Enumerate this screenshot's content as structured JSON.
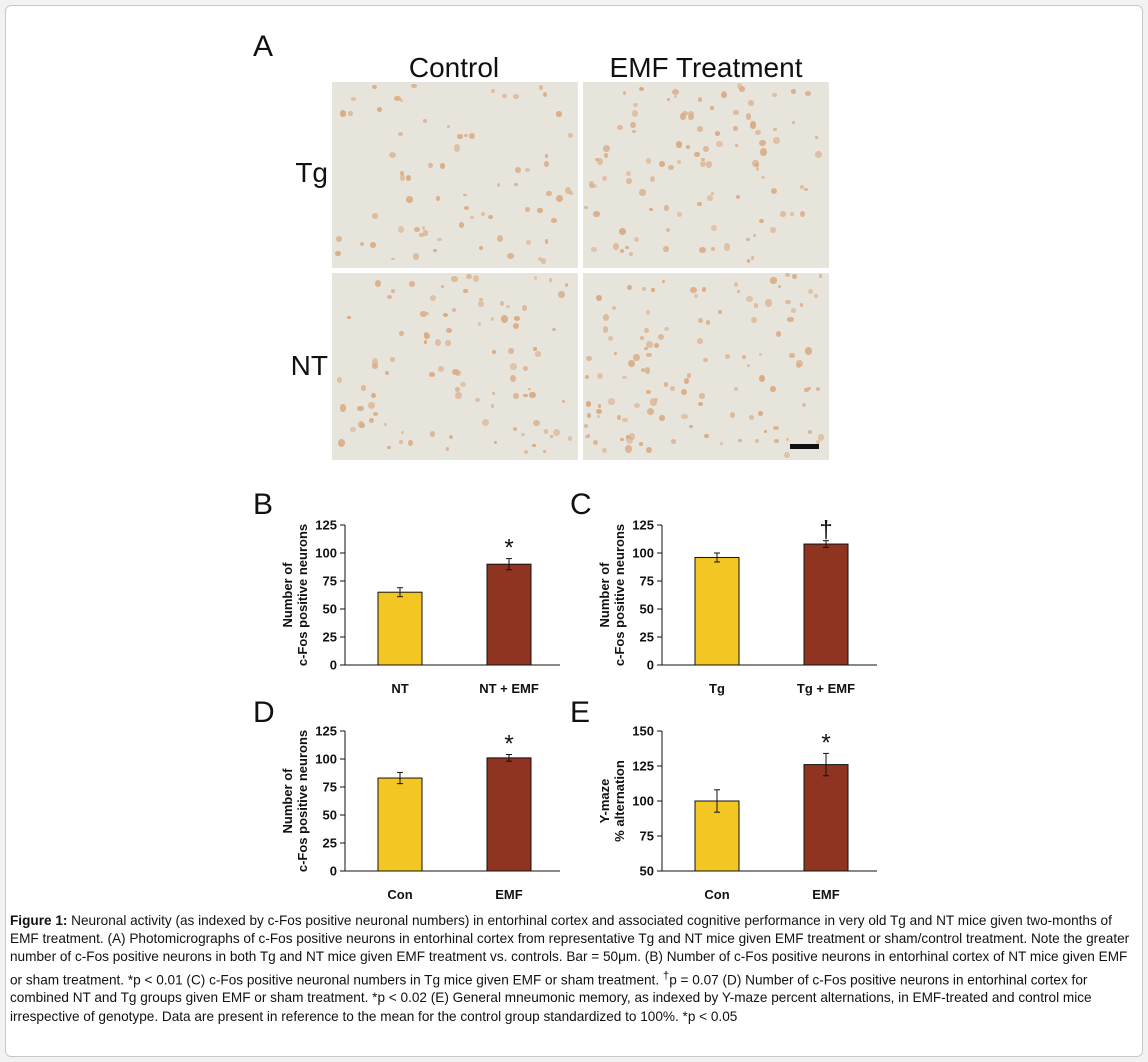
{
  "panelA": {
    "letter": "A",
    "col_headers": [
      "Control",
      "EMF Treatment"
    ],
    "row_labels": [
      "Tg",
      "NT"
    ],
    "cell_density": {
      "tg_control": 70,
      "tg_emf": 100,
      "nt_control": 95,
      "nt_emf": 120
    }
  },
  "colors": {
    "control_bar": "#f3c623",
    "emf_bar": "#8f3420",
    "stain": "#d9ab85",
    "background": "#e7e4dc"
  },
  "chart_data": [
    {
      "panel": "B",
      "type": "bar",
      "categories": [
        "NT",
        "NT + EMF"
      ],
      "values": [
        65,
        90
      ],
      "errors": [
        4,
        5
      ],
      "ylabel": [
        "Number of",
        "c-Fos positive neurons"
      ],
      "ylim": [
        0,
        125
      ],
      "yticks": [
        0,
        25,
        50,
        75,
        100,
        125
      ],
      "annotations": [
        "",
        "*"
      ]
    },
    {
      "panel": "C",
      "type": "bar",
      "categories": [
        "Tg",
        "Tg + EMF"
      ],
      "values": [
        96,
        108
      ],
      "errors": [
        4,
        3
      ],
      "ylabel": [
        "Number of",
        "c-Fos positive neurons"
      ],
      "ylim": [
        0,
        125
      ],
      "yticks": [
        0,
        25,
        50,
        75,
        100,
        125
      ],
      "annotations": [
        "",
        "†"
      ]
    },
    {
      "panel": "D",
      "type": "bar",
      "categories": [
        "Con",
        "EMF"
      ],
      "values": [
        83,
        101
      ],
      "errors": [
        5,
        3
      ],
      "ylabel": [
        "Number of",
        "c-Fos positive neurons"
      ],
      "ylim": [
        0,
        125
      ],
      "yticks": [
        0,
        25,
        50,
        75,
        100,
        125
      ],
      "annotations": [
        "",
        "*"
      ]
    },
    {
      "panel": "E",
      "type": "bar",
      "categories": [
        "Con",
        "EMF"
      ],
      "values": [
        100,
        126
      ],
      "errors": [
        8,
        8
      ],
      "ylabel": [
        "Y-maze",
        "% alternation"
      ],
      "ylim": [
        50,
        150
      ],
      "yticks": [
        50,
        75,
        100,
        125,
        150
      ],
      "annotations": [
        "",
        "*"
      ]
    }
  ],
  "caption": {
    "label": "Figure 1:",
    "text": "  Neuronal activity (as indexed by c-Fos positive neuronal numbers) in entorhinal cortex and associated cognitive performance in very old Tg and NT mice given two-months of EMF treatment. (A) Photomicrographs of c-Fos positive neurons in entorhinal cortex from representative Tg and NT mice given EMF treatment or sham/control treatment. Note the greater number of c-Fos positive neurons in both Tg and NT mice given EMF treatment vs. controls.  Bar = 50μm.  (B) Number of c-Fos positive neurons in entorhinal cortex of NT mice given EMF or sham treatment.  *p < 0.01  (C)  c-Fos positive neuronal numbers in Tg mice given EMF or sham treatment. ",
    "dagger": "†",
    "text2": "p = 0.07  (D)  Number of c-Fos positive neurons in entorhinal cortex for combined NT and Tg groups given EMF or sham treatment.  *p < 0.02  (E) General mneumonic memory, as indexed by Y-maze percent alternations, in EMF-treated and control mice irrespective of genotype.  Data are present in reference to the mean for the control group standardized to 100%.  *p < 0.05"
  }
}
